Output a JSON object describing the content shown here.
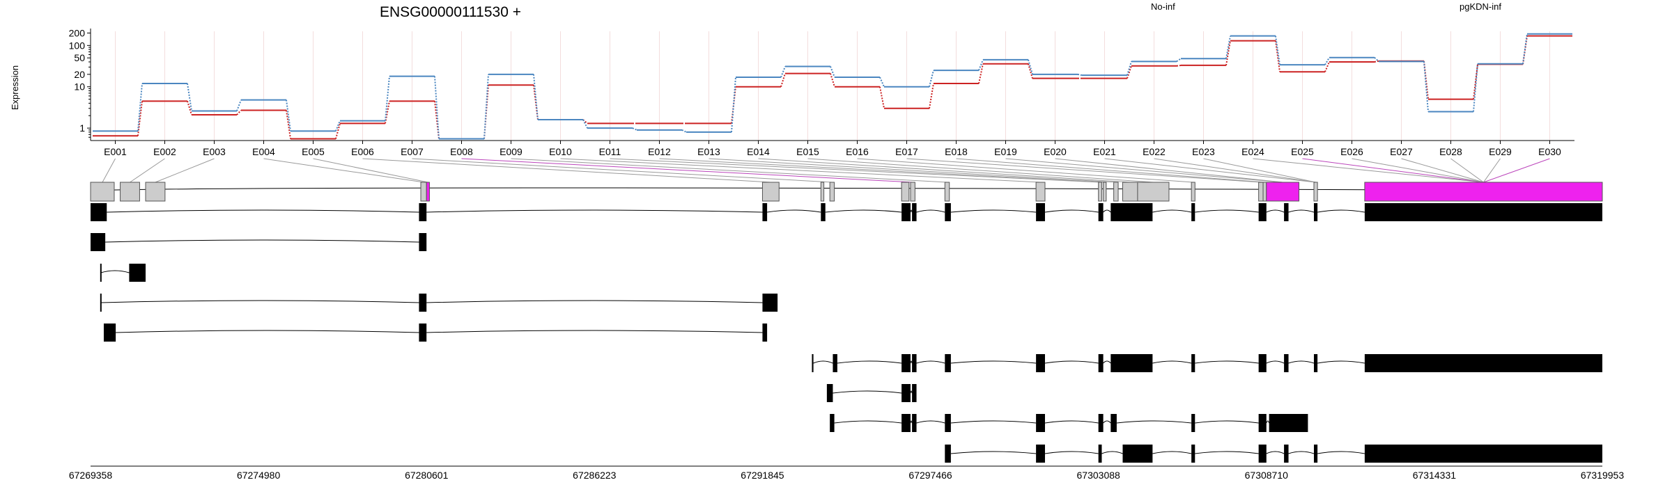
{
  "title": "ENSG00000111530 +",
  "chart_data": {
    "type": "line",
    "title": "ENSG00000111530 +",
    "ylabel": "Expression",
    "yscale": "log",
    "ylim": [
      0.5,
      220
    ],
    "yticks": [
      1,
      10,
      20,
      50,
      100,
      200
    ],
    "ytick_labels": [
      "1",
      "10",
      "20",
      "50",
      "100",
      "200"
    ],
    "legend_position": "top",
    "grid": "vertical",
    "categories": [
      "E001",
      "E002",
      "E003",
      "E004",
      "E005",
      "E006",
      "E007",
      "E008",
      "E009",
      "E010",
      "E011",
      "E012",
      "E013",
      "E014",
      "E015",
      "E016",
      "E017",
      "E018",
      "E019",
      "E020",
      "E021",
      "E022",
      "E023",
      "E024",
      "E025",
      "E026",
      "E027",
      "E028",
      "E029",
      "E030"
    ],
    "series": [
      {
        "name": "No-inf",
        "color": "#cc2222",
        "values": [
          0.65,
          4.5,
          2.1,
          2.7,
          0.55,
          1.3,
          4.5,
          0.55,
          11,
          1.6,
          1.3,
          1.3,
          1.3,
          10,
          21,
          10,
          3,
          12,
          36,
          16,
          16,
          32,
          33,
          130,
          23,
          40,
          42,
          5,
          35,
          170
        ]
      },
      {
        "name": "pgKDN-inf",
        "color": "#4a86c0",
        "values": [
          0.85,
          12,
          2.6,
          4.8,
          0.85,
          1.5,
          18,
          0.55,
          20,
          1.6,
          1.0,
          0.9,
          0.8,
          17,
          31,
          17,
          10,
          25,
          45,
          20,
          19,
          41,
          48,
          170,
          34,
          51,
          41,
          2.5,
          36,
          190
        ]
      }
    ],
    "exon_colors": {
      "default": "#cccccc",
      "highlight": "#ee22ee",
      "transcript": "#000000"
    },
    "genomic_axis": {
      "start": 67269358,
      "end": 67319953,
      "ticks": [
        "67269358",
        "67274980",
        "67280601",
        "67286223",
        "67291845",
        "67297466",
        "67303088",
        "67308710",
        "67314331",
        "67319953"
      ]
    }
  }
}
